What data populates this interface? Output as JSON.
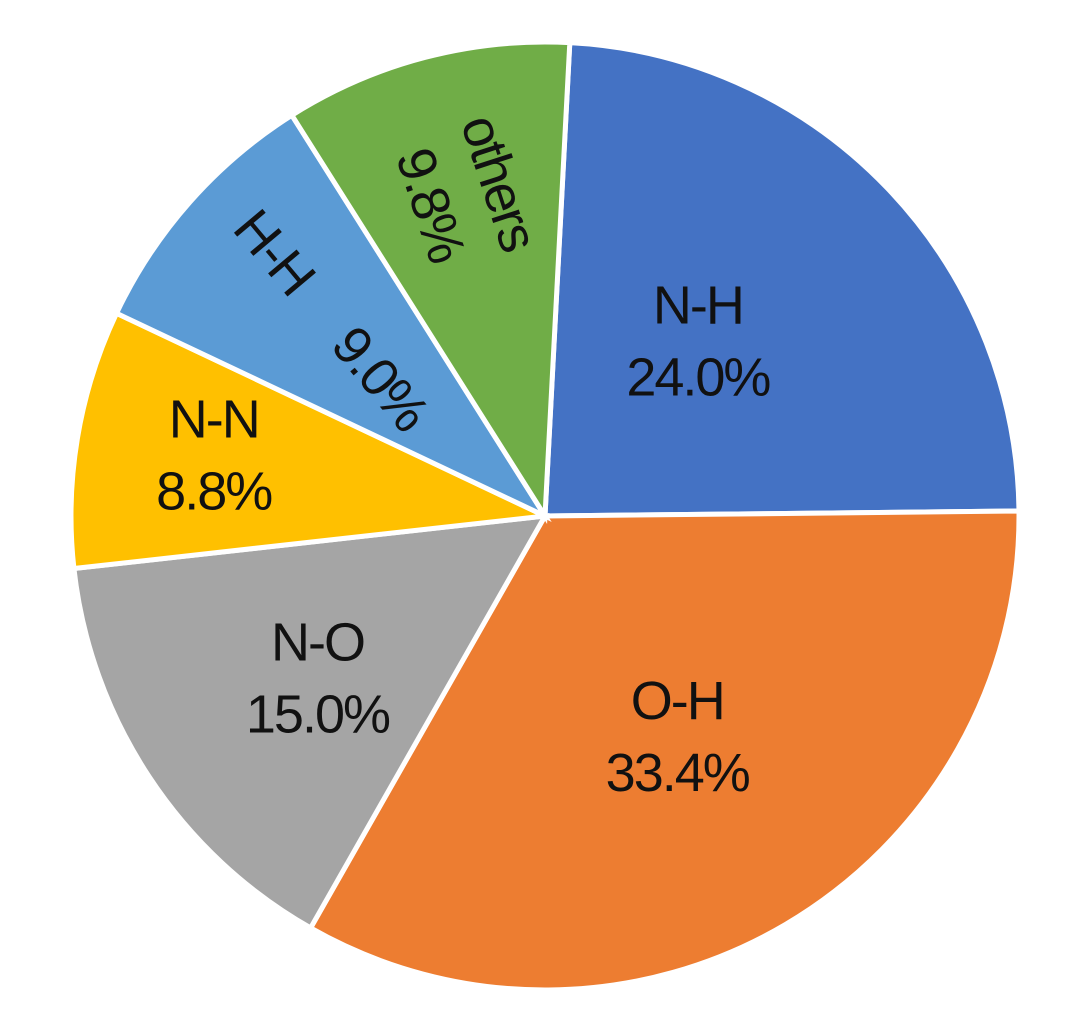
{
  "chart_data": {
    "type": "pie",
    "categories": [
      "N-H",
      "O-H",
      "N-O",
      "N-N",
      "H-H",
      "others"
    ],
    "values": [
      24.0,
      33.4,
      15.0,
      8.8,
      9.0,
      9.8
    ],
    "value_labels": [
      "24.0%",
      "33.4%",
      "15.0%",
      "8.8%",
      "9.0%",
      "9.8%"
    ],
    "colors": [
      "#4472c4",
      "#ed7d31",
      "#a5a5a5",
      "#ffc000",
      "#5b9bd5",
      "#70ad47"
    ]
  }
}
